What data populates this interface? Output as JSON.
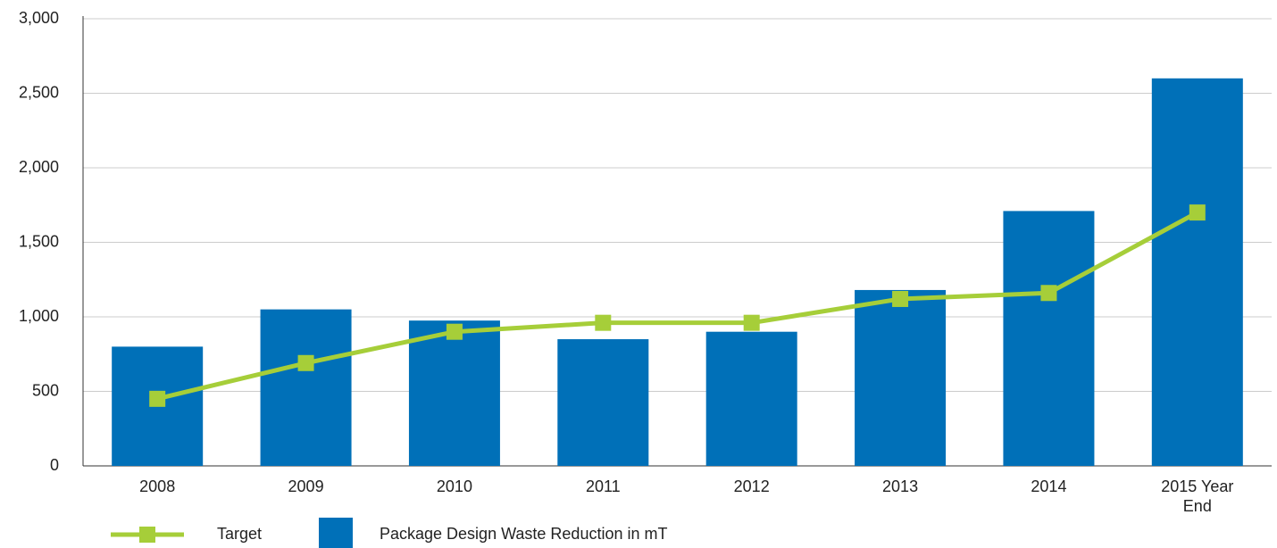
{
  "chart_data": {
    "type": "bar_line",
    "categories": [
      "2008",
      "2009",
      "2010",
      "2011",
      "2012",
      "2013",
      "2014",
      "2015 Year End"
    ],
    "series": [
      {
        "name": "Package Design Waste Reduction in mT",
        "type": "bar",
        "color": "#0070b8",
        "values": [
          800,
          1050,
          975,
          850,
          900,
          1180,
          1710,
          2600
        ]
      },
      {
        "name": "Target",
        "type": "line",
        "color": "#a6ce39",
        "values": [
          450,
          690,
          900,
          960,
          960,
          1120,
          1160,
          1700
        ]
      }
    ],
    "ylim": [
      0,
      3000
    ],
    "yticks": [
      0,
      500,
      {
        "value": 1000,
        "label": "1,000"
      },
      {
        "value": 1500,
        "label": "1,500"
      },
      {
        "value": 2000,
        "label": "2,000"
      },
      {
        "value": 2500,
        "label": "2,500"
      },
      {
        "value": 3000,
        "label": "3,000"
      }
    ],
    "grid": true
  }
}
